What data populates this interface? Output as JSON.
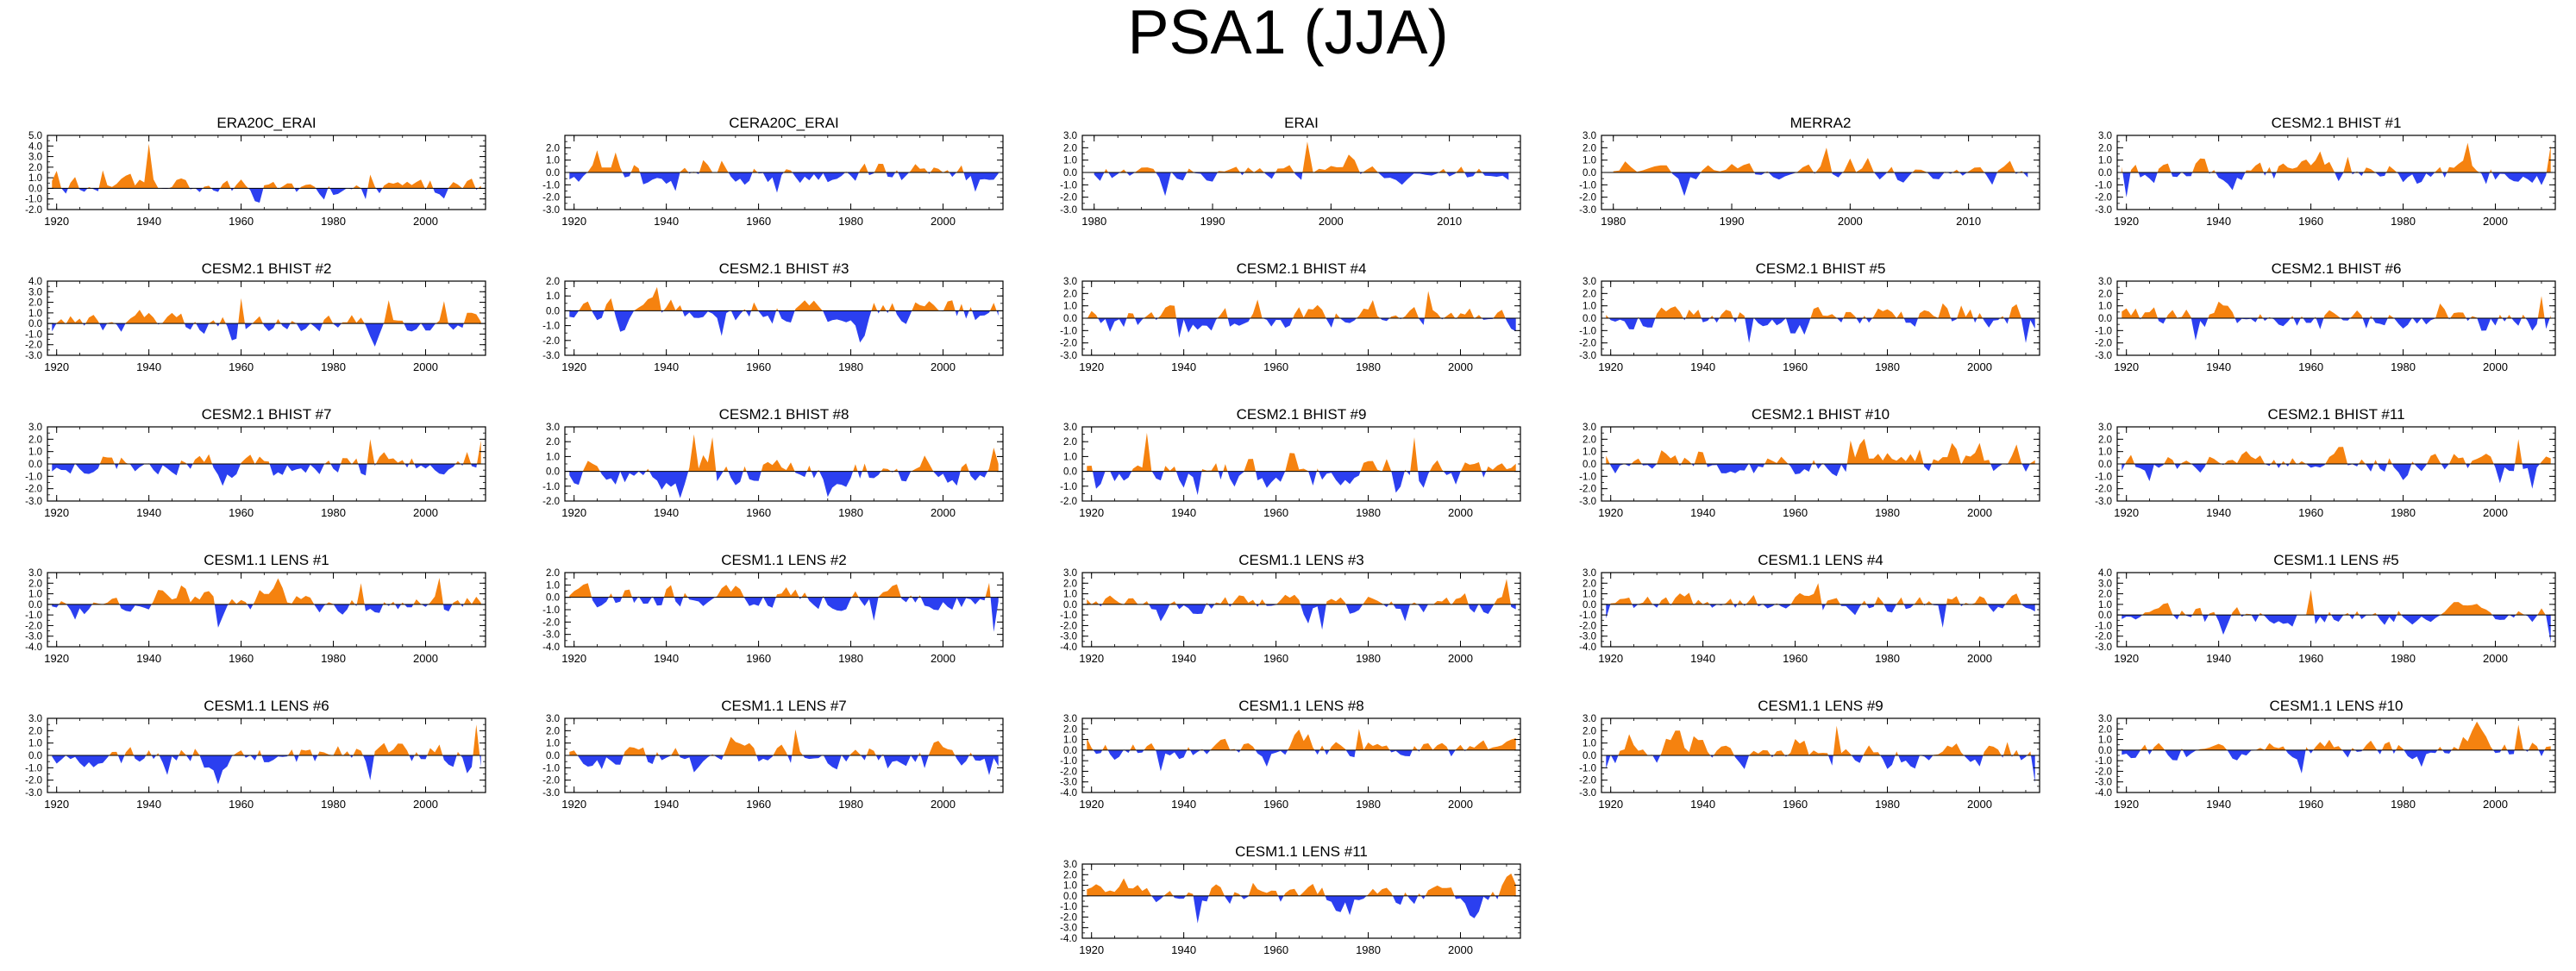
{
  "figure": {
    "title": "PSA1 (JJA)"
  },
  "colors": {
    "positive": "#f5820f",
    "negative": "#2b3ff0",
    "frame": "#000000",
    "background": "#ffffff"
  },
  "chart_data": [
    {
      "type": "area",
      "title": "ERA20C_ERAI",
      "xlim": [
        1918,
        2013
      ],
      "ylim": [
        -2.0,
        5.0
      ],
      "yticks": [
        "5.0",
        "4.0",
        "3.0",
        "2.0",
        "1.0",
        "0.0",
        "-1.0",
        "-2.0"
      ],
      "xticks": [
        1920,
        1940,
        1960,
        1980,
        2000
      ],
      "seed": 11,
      "amp": 1.1,
      "spikes": [
        [
          1940,
          4.2
        ],
        [
          1930,
          1.7
        ],
        [
          1988,
          1.3
        ]
      ]
    },
    {
      "type": "area",
      "title": "CERA20C_ERAI",
      "xlim": [
        1918,
        2013
      ],
      "ylim": [
        -3.0,
        3.0
      ],
      "yticks": [
        "2.0",
        "1.0",
        "0.0",
        "-1.0",
        "-2.0",
        "-3.0"
      ],
      "xticks": [
        1920,
        1940,
        1960,
        1980,
        2000
      ],
      "seed": 12,
      "amp": 1.0,
      "spikes": [
        [
          1925,
          1.8
        ],
        [
          1942,
          -1.5
        ]
      ]
    },
    {
      "type": "area",
      "title": "ERAI",
      "xlim": [
        1979,
        2016
      ],
      "ylim": [
        -3.0,
        3.0
      ],
      "yticks": [
        "3.0",
        "2.0",
        "1.0",
        "0.0",
        "-1.0",
        "-2.0",
        "-3.0"
      ],
      "xticks": [
        1980,
        1990,
        2000,
        2010
      ],
      "seed": 13,
      "amp": 0.8,
      "spikes": [
        [
          1986,
          -1.9
        ],
        [
          1998,
          2.5
        ],
        [
          2006,
          -1.0
        ]
      ]
    },
    {
      "type": "area",
      "title": "MERRA2",
      "xlim": [
        1979,
        2016
      ],
      "ylim": [
        -3.0,
        3.0
      ],
      "yticks": [
        "3.0",
        "2.0",
        "1.0",
        "0.0",
        "-1.0",
        "-2.0",
        "-3.0"
      ],
      "xticks": [
        1980,
        1990,
        2000,
        2010
      ],
      "seed": 14,
      "amp": 0.8,
      "spikes": [
        [
          1986,
          -1.9
        ],
        [
          1998,
          2.0
        ],
        [
          2012,
          -1.0
        ]
      ]
    },
    {
      "type": "area",
      "title": "CESM2.1 BHIST #1",
      "xlim": [
        1918,
        2013
      ],
      "ylim": [
        -3.0,
        3.0
      ],
      "yticks": [
        "3.0",
        "2.0",
        "1.0",
        "0.0",
        "-1.0",
        "-2.0",
        "-3.0"
      ],
      "xticks": [
        1920,
        1940,
        1960,
        1980,
        2000
      ],
      "seed": 15,
      "amp": 1.0,
      "spikes": [
        [
          1994,
          2.4
        ],
        [
          2012,
          2.2
        ],
        [
          1920,
          -2.0
        ]
      ]
    },
    {
      "type": "area",
      "title": "CESM2.1 BHIST #2",
      "xlim": [
        1918,
        2013
      ],
      "ylim": [
        -3.0,
        4.0
      ],
      "yticks": [
        "4.0",
        "3.0",
        "2.0",
        "1.0",
        "0.0",
        "-1.0",
        "-2.0",
        "-3.0"
      ],
      "xticks": [
        1920,
        1940,
        1960,
        1980,
        2000
      ],
      "seed": 16,
      "amp": 1.0,
      "spikes": [
        [
          1960,
          2.4
        ],
        [
          1992,
          2.2
        ],
        [
          2004,
          2.1
        ]
      ]
    },
    {
      "type": "area",
      "title": "CESM2.1 BHIST #3",
      "xlim": [
        1918,
        2013
      ],
      "ylim": [
        -3.0,
        2.0
      ],
      "yticks": [
        "2.0",
        "1.0",
        "0.0",
        "-1.0",
        "-2.0",
        "-3.0"
      ],
      "xticks": [
        1920,
        1940,
        1960,
        1980,
        2000
      ],
      "seed": 17,
      "amp": 1.0,
      "spikes": [
        [
          1938,
          1.6
        ],
        [
          1952,
          -1.7
        ]
      ]
    },
    {
      "type": "area",
      "title": "CESM2.1 BHIST #4",
      "xlim": [
        1918,
        2013
      ],
      "ylim": [
        -3.0,
        3.0
      ],
      "yticks": [
        "3.0",
        "2.0",
        "1.0",
        "0.0",
        "-1.0",
        "-2.0",
        "-3.0"
      ],
      "xticks": [
        1920,
        1940,
        1960,
        1980,
        2000
      ],
      "seed": 18,
      "amp": 1.0,
      "spikes": [
        [
          1993,
          2.2
        ],
        [
          1939,
          -1.6
        ]
      ]
    },
    {
      "type": "area",
      "title": "CESM2.1 BHIST #5",
      "xlim": [
        1918,
        2013
      ],
      "ylim": [
        -3.0,
        3.0
      ],
      "yticks": [
        "3.0",
        "2.0",
        "1.0",
        "0.0",
        "-1.0",
        "-2.0",
        "-3.0"
      ],
      "xticks": [
        1920,
        1940,
        1960,
        1980,
        2000
      ],
      "seed": 19,
      "amp": 1.0,
      "spikes": [
        [
          1950,
          -2.0
        ],
        [
          2010,
          -2.0
        ]
      ]
    },
    {
      "type": "area",
      "title": "CESM2.1 BHIST #6",
      "xlim": [
        1918,
        2013
      ],
      "ylim": [
        -3.0,
        3.0
      ],
      "yticks": [
        "3.0",
        "2.0",
        "1.0",
        "0.0",
        "-1.0",
        "-2.0",
        "-3.0"
      ],
      "xticks": [
        1920,
        1940,
        1960,
        1980,
        2000
      ],
      "seed": 20,
      "amp": 0.9,
      "spikes": [
        [
          1935,
          -1.8
        ],
        [
          2010,
          1.8
        ]
      ]
    },
    {
      "type": "area",
      "title": "CESM2.1 BHIST #7",
      "xlim": [
        1918,
        2013
      ],
      "ylim": [
        -3.0,
        3.0
      ],
      "yticks": [
        "3.0",
        "2.0",
        "1.0",
        "0.0",
        "-1.0",
        "-2.0",
        "-3.0"
      ],
      "xticks": [
        1920,
        1940,
        1960,
        1980,
        2000
      ],
      "seed": 21,
      "amp": 1.0,
      "spikes": [
        [
          1988,
          2.0
        ],
        [
          2012,
          1.9
        ]
      ]
    },
    {
      "type": "area",
      "title": "CESM2.1 BHIST #8",
      "xlim": [
        1918,
        2013
      ],
      "ylim": [
        -2.0,
        3.0
      ],
      "yticks": [
        "3.0",
        "2.0",
        "1.0",
        "0.0",
        "-1.0",
        "-2.0"
      ],
      "xticks": [
        1920,
        1940,
        1960,
        1980,
        2000
      ],
      "seed": 22,
      "amp": 1.0,
      "spikes": [
        [
          1946,
          2.5
        ],
        [
          1950,
          2.3
        ],
        [
          2011,
          1.6
        ]
      ]
    },
    {
      "type": "area",
      "title": "CESM2.1 BHIST #9",
      "xlim": [
        1918,
        2013
      ],
      "ylim": [
        -2.0,
        3.0
      ],
      "yticks": [
        "3.0",
        "2.0",
        "1.0",
        "0.0",
        "-1.0",
        "-2.0"
      ],
      "xticks": [
        1920,
        1940,
        1960,
        1980,
        2000
      ],
      "seed": 23,
      "amp": 1.1,
      "spikes": [
        [
          1932,
          2.6
        ],
        [
          1943,
          -1.6
        ],
        [
          1990,
          2.3
        ]
      ]
    },
    {
      "type": "area",
      "title": "CESM2.1 BHIST #10",
      "xlim": [
        1918,
        2013
      ],
      "ylim": [
        -3.0,
        3.0
      ],
      "yticks": [
        "3.0",
        "2.0",
        "1.0",
        "0.0",
        "-1.0",
        "-2.0",
        "-3.0"
      ],
      "xticks": [
        1920,
        1940,
        1960,
        1980,
        2000
      ],
      "seed": 24,
      "amp": 1.0,
      "spikes": [
        [
          1972,
          1.9
        ],
        [
          2000,
          1.7
        ]
      ]
    },
    {
      "type": "area",
      "title": "CESM2.1 BHIST #11",
      "xlim": [
        1918,
        2013
      ],
      "ylim": [
        -3.0,
        3.0
      ],
      "yticks": [
        "3.0",
        "2.0",
        "1.0",
        "0.0",
        "-1.0",
        "-2.0",
        "-3.0"
      ],
      "xticks": [
        1920,
        1940,
        1960,
        1980,
        2000
      ],
      "seed": 25,
      "amp": 1.0,
      "spikes": [
        [
          2005,
          2.0
        ],
        [
          2008,
          -2.0
        ]
      ]
    },
    {
      "type": "area",
      "title": "CESM1.1 LENS #1",
      "xlim": [
        1918,
        2013
      ],
      "ylim": [
        -4.0,
        3.0
      ],
      "yticks": [
        "3.0",
        "2.0",
        "1.0",
        "0.0",
        "-1.0",
        "-2.0",
        "-3.0",
        "-4.0"
      ],
      "xticks": [
        1920,
        1940,
        1960,
        1980,
        2000
      ],
      "seed": 26,
      "amp": 1.0,
      "spikes": [
        [
          1955,
          -2.2
        ],
        [
          2003,
          2.5
        ],
        [
          1986,
          2.0
        ]
      ]
    },
    {
      "type": "area",
      "title": "CESM1.1 LENS #2",
      "xlim": [
        1918,
        2013
      ],
      "ylim": [
        -4.0,
        2.0
      ],
      "yticks": [
        "2.0",
        "1.0",
        "0.0",
        "-1.0",
        "-2.0",
        "-3.0",
        "-4.0"
      ],
      "xticks": [
        1920,
        1940,
        1960,
        1980,
        2000
      ],
      "seed": 27,
      "amp": 1.0,
      "spikes": [
        [
          2011,
          -2.8
        ],
        [
          1985,
          -1.9
        ]
      ]
    },
    {
      "type": "area",
      "title": "CESM1.1 LENS #3",
      "xlim": [
        1918,
        2013
      ],
      "ylim": [
        -4.0,
        3.0
      ],
      "yticks": [
        "3.0",
        "2.0",
        "1.0",
        "0.0",
        "-1.0",
        "-2.0",
        "-3.0",
        "-4.0"
      ],
      "xticks": [
        1920,
        1940,
        1960,
        1980,
        2000
      ],
      "seed": 28,
      "amp": 1.0,
      "spikes": [
        [
          2010,
          2.4
        ],
        [
          1970,
          -2.4
        ]
      ]
    },
    {
      "type": "area",
      "title": "CESM1.1 LENS #4",
      "xlim": [
        1918,
        2013
      ],
      "ylim": [
        -4.0,
        3.0
      ],
      "yticks": [
        "3.0",
        "2.0",
        "1.0",
        "0.0",
        "-1.0",
        "-2.0",
        "-3.0",
        "-4.0"
      ],
      "xticks": [
        1920,
        1940,
        1960,
        1980,
        2000
      ],
      "seed": 29,
      "amp": 1.0,
      "spikes": [
        [
          1965,
          2.0
        ],
        [
          1992,
          -2.2
        ]
      ]
    },
    {
      "type": "area",
      "title": "CESM1.1 LENS #5",
      "xlim": [
        1918,
        2013
      ],
      "ylim": [
        -3.0,
        4.0
      ],
      "yticks": [
        "4.0",
        "3.0",
        "2.0",
        "1.0",
        "0.0",
        "-1.0",
        "-2.0",
        "-3.0"
      ],
      "xticks": [
        1920,
        1940,
        1960,
        1980,
        2000
      ],
      "seed": 30,
      "amp": 1.0,
      "spikes": [
        [
          1960,
          2.4
        ],
        [
          2012,
          -2.6
        ]
      ]
    },
    {
      "type": "area",
      "title": "CESM1.1 LENS #6",
      "xlim": [
        1918,
        2013
      ],
      "ylim": [
        -3.0,
        3.0
      ],
      "yticks": [
        "3.0",
        "2.0",
        "1.0",
        "0.0",
        "-1.0",
        "-2.0",
        "-3.0"
      ],
      "xticks": [
        1920,
        1940,
        1960,
        1980,
        2000
      ],
      "seed": 31,
      "amp": 1.0,
      "spikes": [
        [
          2011,
          2.5
        ],
        [
          1988,
          -2.0
        ]
      ]
    },
    {
      "type": "area",
      "title": "CESM1.1 LENS #7",
      "xlim": [
        1918,
        2013
      ],
      "ylim": [
        -3.0,
        3.0
      ],
      "yticks": [
        "3.0",
        "2.0",
        "1.0",
        "0.0",
        "-1.0",
        "-2.0",
        "-3.0"
      ],
      "xticks": [
        1920,
        1940,
        1960,
        1980,
        2000
      ],
      "seed": 32,
      "amp": 1.0,
      "spikes": [
        [
          1968,
          2.1
        ],
        [
          2010,
          -1.6
        ]
      ]
    },
    {
      "type": "area",
      "title": "CESM1.1 LENS #8",
      "xlim": [
        1918,
        2013
      ],
      "ylim": [
        -4.0,
        3.0
      ],
      "yticks": [
        "3.0",
        "2.0",
        "1.0",
        "0.0",
        "-1.0",
        "-2.0",
        "-3.0",
        "-4.0"
      ],
      "xticks": [
        1920,
        1940,
        1960,
        1980,
        2000
      ],
      "seed": 33,
      "amp": 1.0,
      "spikes": [
        [
          1978,
          2.0
        ],
        [
          1935,
          -2.0
        ]
      ]
    },
    {
      "type": "area",
      "title": "CESM1.1 LENS #9",
      "xlim": [
        1918,
        2013
      ],
      "ylim": [
        -3.0,
        3.0
      ],
      "yticks": [
        "3.0",
        "2.0",
        "1.0",
        "0.0",
        "-1.0",
        "-2.0",
        "-3.0"
      ],
      "xticks": [
        1920,
        1940,
        1960,
        1980,
        2000
      ],
      "seed": 34,
      "amp": 1.0,
      "spikes": [
        [
          1969,
          2.4
        ],
        [
          2012,
          -2.2
        ]
      ]
    },
    {
      "type": "area",
      "title": "CESM1.1 LENS #10",
      "xlim": [
        1918,
        2013
      ],
      "ylim": [
        -4.0,
        3.0
      ],
      "yticks": [
        "3.0",
        "2.0",
        "1.0",
        "0.0",
        "-1.0",
        "-2.0",
        "-3.0",
        "-4.0"
      ],
      "xticks": [
        1920,
        1940,
        1960,
        1980,
        2000
      ],
      "seed": 35,
      "amp": 1.0,
      "spikes": [
        [
          2005,
          2.4
        ],
        [
          1958,
          -2.2
        ]
      ]
    },
    {
      "type": "area",
      "title": "CESM1.1 LENS #11",
      "xlim": [
        1918,
        2013
      ],
      "ylim": [
        -4.0,
        3.0
      ],
      "yticks": [
        "3.0",
        "2.0",
        "1.0",
        "0.0",
        "-1.0",
        "-2.0",
        "-3.0",
        "-4.0"
      ],
      "xticks": [
        1920,
        1940,
        1960,
        1980,
        2000
      ],
      "seed": 36,
      "amp": 1.0,
      "spikes": [
        [
          1943,
          -2.6
        ],
        [
          2010,
          1.8
        ]
      ]
    }
  ]
}
